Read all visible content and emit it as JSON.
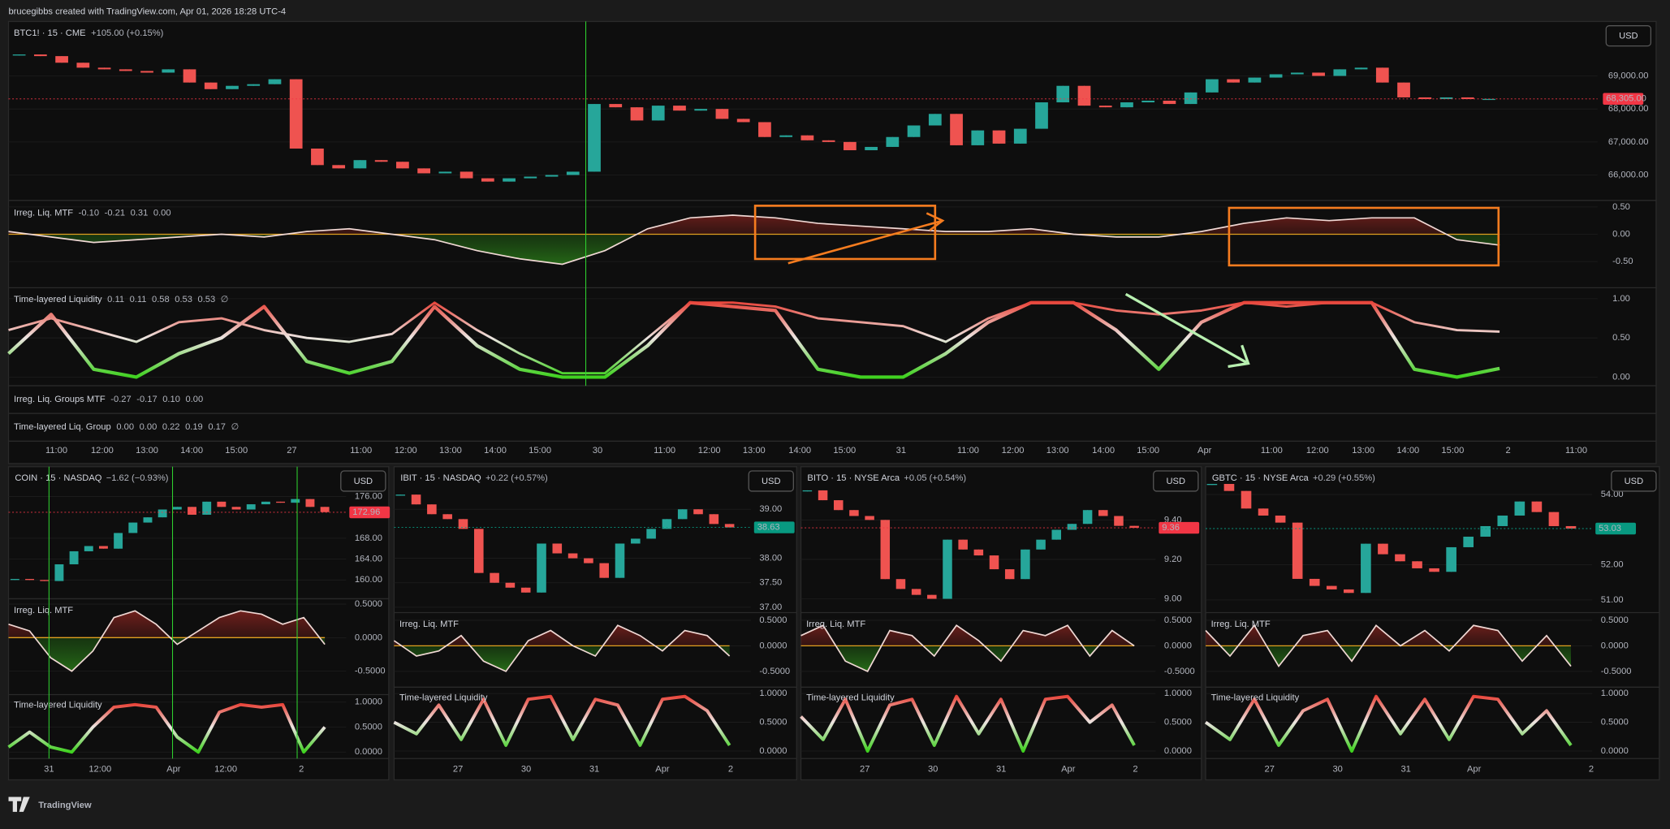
{
  "header": "brucegibbs created with TradingView.com, Apr 01, 2026 18:28 UTC-4",
  "footer": {
    "logo": "TradingView"
  },
  "main": {
    "symbol": "BTC1! · 15 · CME",
    "change": "+105.00 (+0.15%)",
    "currency": "USD",
    "ylim": [
      65230,
      70650
    ],
    "yticks": [
      {
        "value": 69000,
        "label": "69,000.00"
      },
      {
        "value": 68000,
        "label": "68,000.00"
      },
      {
        "value": 67000,
        "label": "67,000.00"
      },
      {
        "value": 66000,
        "label": "66,000.00"
      }
    ],
    "last": {
      "value": 68305,
      "label": "68,305.00"
    },
    "closes": [
      69650,
      69600,
      69400,
      69250,
      69200,
      69150,
      69100,
      69200,
      68800,
      68600,
      68700,
      68750,
      68900,
      66800,
      66300,
      66200,
      66450,
      66400,
      66200,
      66050,
      66100,
      65900,
      65800,
      65900,
      65950,
      66000,
      66100,
      68150,
      68050,
      67650,
      68100,
      67950,
      68000,
      67700,
      67600,
      67150,
      67200,
      67050,
      67000,
      66750,
      66850,
      67150,
      67500,
      67850,
      66900,
      67350,
      66950,
      67400,
      68200,
      68700,
      68100,
      68050,
      68200,
      68250,
      68150,
      68500,
      68900,
      68800,
      68950,
      69050,
      69100,
      69000,
      69200,
      69250,
      68800,
      68350,
      68300,
      68350,
      68300,
      68305
    ],
    "mtf": {
      "title": "Irreg. Liq. MTF",
      "readouts": [
        {
          "text": "-0.10",
          "color": "#8fd18f"
        },
        {
          "text": "-0.21",
          "color": "#6fc46f"
        },
        {
          "text": "0.31",
          "color": "#e06060"
        },
        {
          "text": "0.00",
          "color": "#f5a623"
        }
      ],
      "ylim": [
        -0.98,
        0.62
      ],
      "yticks": [
        {
          "value": 0.5,
          "label": "0.50"
        },
        {
          "value": 0,
          "label": "0.00"
        },
        {
          "value": -0.5,
          "label": "-0.50"
        }
      ],
      "values": [
        0.05,
        -0.05,
        -0.15,
        -0.1,
        -0.05,
        0.0,
        -0.05,
        0.05,
        0.1,
        0.0,
        -0.1,
        -0.3,
        -0.45,
        -0.55,
        -0.3,
        0.1,
        0.3,
        0.35,
        0.3,
        0.2,
        0.15,
        0.1,
        0.05,
        0.05,
        0.1,
        0.0,
        -0.05,
        -0.05,
        0.05,
        0.2,
        0.3,
        0.25,
        0.3,
        0.3,
        -0.1,
        -0.2
      ]
    },
    "tl": {
      "title": "Time-layered Liquidity",
      "readouts": [
        {
          "text": "0.11",
          "color": "#6fd84a"
        },
        {
          "text": "0.11",
          "color": "#9ee08a"
        },
        {
          "text": "0.58",
          "color": "#e0e0e0"
        },
        {
          "text": "0.53",
          "color": "#e0e0e0"
        },
        {
          "text": "0.53",
          "color": "#e0e0e0"
        },
        {
          "text": "∅",
          "color": "#b2b5be"
        }
      ],
      "ylim": [
        -0.11,
        1.14
      ],
      "yticks": [
        {
          "value": 1,
          "label": "1.00"
        },
        {
          "value": 0.5,
          "label": "0.50"
        },
        {
          "value": 0,
          "label": "0.00"
        }
      ],
      "slow": [
        0.6,
        0.75,
        0.6,
        0.45,
        0.7,
        0.75,
        0.6,
        0.5,
        0.45,
        0.55,
        0.95,
        0.6,
        0.3,
        0.05,
        0.05,
        0.5,
        0.95,
        0.95,
        0.9,
        0.75,
        0.7,
        0.65,
        0.45,
        0.75,
        0.95,
        0.95,
        0.85,
        0.8,
        0.85,
        0.95,
        0.9,
        0.95,
        0.95,
        0.7,
        0.6,
        0.58
      ],
      "fast": [
        0.3,
        0.8,
        0.1,
        0.0,
        0.3,
        0.5,
        0.9,
        0.2,
        0.05,
        0.2,
        0.9,
        0.4,
        0.1,
        0.0,
        0.0,
        0.4,
        0.95,
        0.9,
        0.85,
        0.1,
        0.0,
        0.0,
        0.3,
        0.7,
        0.95,
        0.95,
        0.6,
        0.1,
        0.7,
        0.95,
        0.95,
        0.95,
        0.95,
        0.1,
        0.0,
        0.11
      ]
    },
    "groups_mtf": {
      "title": "Irreg. Liq. Groups MTF",
      "readouts": [
        {
          "text": "-0.27",
          "color": "#6fd84a"
        },
        {
          "text": "-0.17",
          "color": "#9ee08a"
        },
        {
          "text": "0.10",
          "color": "#e0e0e0"
        },
        {
          "text": "0.00",
          "color": "#f5a623"
        }
      ]
    },
    "groups_tl": {
      "title": "Time-layered Liq. Group",
      "readouts": [
        {
          "text": "0.00",
          "color": "#6fd84a"
        },
        {
          "text": "0.00",
          "color": "#6fd84a"
        },
        {
          "text": "0.22",
          "color": "#cfe8c8"
        },
        {
          "text": "0.19",
          "color": "#cfe8c8"
        },
        {
          "text": "0.17",
          "color": "#cfe8c8"
        },
        {
          "text": "∅",
          "color": "#b2b5be"
        }
      ]
    },
    "time_labels": [
      "11:00",
      "12:00",
      "13:00",
      "14:00",
      "15:00",
      "27",
      "11:00",
      "12:00",
      "13:00",
      "14:00",
      "15:00",
      "30",
      "11:00",
      "12:00",
      "13:00",
      "14:00",
      "15:00",
      "31",
      "11:00",
      "12:00",
      "13:00",
      "14:00",
      "15:00",
      "Apr",
      "11:00",
      "12:00",
      "13:00",
      "14:00",
      "15:00",
      "2",
      "11:00"
    ]
  },
  "panels": [
    {
      "symbol": "COIN · 15 · NASDAQ",
      "change": "−1.62 (−0.93%)",
      "change_color": "#f23645",
      "currency": "USD",
      "ylim": [
        156.4,
        181.7
      ],
      "yticks": [
        {
          "value": 176,
          "label": "176.00"
        },
        {
          "value": 168,
          "label": "168.00"
        },
        {
          "value": 164,
          "label": "164.00"
        },
        {
          "value": 160,
          "label": "160.00"
        }
      ],
      "last": {
        "value": 172.96,
        "label": "172.96",
        "color": "#f23645"
      },
      "closes": [
        160.2,
        160.0,
        159.8,
        163,
        165.5,
        166.5,
        166,
        169,
        171,
        172,
        173.5,
        174,
        172.5,
        175,
        174,
        173.5,
        174.5,
        175,
        174.8,
        175.5,
        174,
        173
      ],
      "mtf": {
        "title": "Irreg. Liq. MTF",
        "ylim": [
          -0.85,
          0.58
        ],
        "yticks": [
          {
            "value": 0.5,
            "label": "0.5000"
          },
          {
            "value": 0,
            "label": "0.0000"
          },
          {
            "value": -0.5,
            "label": "-0.5000"
          }
        ],
        "values": [
          0.2,
          0.1,
          -0.3,
          -0.5,
          -0.2,
          0.3,
          0.4,
          0.2,
          -0.1,
          0.1,
          0.3,
          0.4,
          0.35,
          0.2,
          0.3,
          -0.1
        ]
      },
      "tl": {
        "title": "Time-layered Liquidity",
        "ylim": [
          -0.13,
          1.15
        ],
        "yticks": [
          {
            "value": 1,
            "label": "1.0000"
          },
          {
            "value": 0.5,
            "label": "0.5000"
          },
          {
            "value": 0,
            "label": "0.0000"
          }
        ],
        "values": [
          0.1,
          0.4,
          0.1,
          0.0,
          0.5,
          0.9,
          0.95,
          0.9,
          0.3,
          0.0,
          0.8,
          0.95,
          0.9,
          0.95,
          0.0,
          0.5
        ]
      },
      "time_labels": [
        "31",
        "12:00",
        "Apr",
        "12:00",
        "2"
      ]
    },
    {
      "symbol": "IBIT · 15 · NASDAQ",
      "change": "+0.22 (+0.57%)",
      "change_color": "#26a69a",
      "currency": "USD",
      "ylim": [
        36.89,
        39.87
      ],
      "yticks": [
        {
          "value": 39,
          "label": "39.00"
        },
        {
          "value": 38,
          "label": "38.00"
        },
        {
          "value": 37.5,
          "label": "37.50"
        },
        {
          "value": 37,
          "label": "37.00"
        }
      ],
      "last": {
        "value": 38.63,
        "label": "38.63",
        "color": "#089981"
      },
      "closes": [
        39.3,
        39.1,
        38.9,
        38.8,
        38.6,
        37.7,
        37.5,
        37.4,
        37.3,
        38.3,
        38.1,
        38.0,
        37.9,
        37.6,
        38.3,
        38.4,
        38.6,
        38.8,
        39.0,
        38.9,
        38.7,
        38.63
      ],
      "mtf": {
        "title": "Irreg. Liq. MTF",
        "ylim": [
          -0.81,
          0.65
        ],
        "yticks": [
          {
            "value": 0.5,
            "label": "0.5000"
          },
          {
            "value": 0,
            "label": "0.0000"
          },
          {
            "value": -0.5,
            "label": "-0.5000"
          }
        ],
        "values": [
          0.1,
          -0.2,
          -0.1,
          0.2,
          -0.3,
          -0.5,
          0.1,
          0.3,
          0.0,
          -0.2,
          0.4,
          0.2,
          -0.1,
          0.3,
          0.2,
          -0.2
        ]
      },
      "tl": {
        "title": "Time-layered Liquidity",
        "ylim": [
          -0.13,
          1.11
        ],
        "yticks": [
          {
            "value": 1,
            "label": "1.0000"
          },
          {
            "value": 0.5,
            "label": "0.5000"
          },
          {
            "value": 0,
            "label": "0.0000"
          }
        ],
        "values": [
          0.5,
          0.3,
          0.8,
          0.2,
          0.9,
          0.1,
          0.9,
          0.95,
          0.2,
          0.9,
          0.8,
          0.1,
          0.9,
          0.95,
          0.7,
          0.1
        ]
      },
      "time_labels": [
        "27",
        "30",
        "31",
        "Apr",
        "2"
      ]
    },
    {
      "symbol": "BITO · 15 · NYSE Arca",
      "change": "+0.05 (+0.54%)",
      "change_color": "#26a69a",
      "currency": "USD",
      "ylim": [
        8.93,
        9.67
      ],
      "yticks": [
        {
          "value": 9.4,
          "label": "9.40"
        },
        {
          "value": 9.2,
          "label": "9.20"
        },
        {
          "value": 9,
          "label": "9.00"
        }
      ],
      "last": {
        "value": 9.36,
        "label": "9.36",
        "color": "#f23645"
      },
      "closes": [
        9.55,
        9.5,
        9.45,
        9.42,
        9.4,
        9.1,
        9.05,
        9.02,
        9.0,
        9.3,
        9.25,
        9.22,
        9.15,
        9.1,
        9.25,
        9.3,
        9.35,
        9.38,
        9.45,
        9.42,
        9.37,
        9.36
      ],
      "mtf": {
        "title": "Irreg. Liq. MTF",
        "ylim": [
          -0.81,
          0.65
        ],
        "yticks": [
          {
            "value": 0.5,
            "label": "0.5000"
          },
          {
            "value": 0,
            "label": "0.0000"
          },
          {
            "value": -0.5,
            "label": "-0.5000"
          }
        ],
        "values": [
          0.2,
          0.4,
          -0.3,
          -0.5,
          0.3,
          0.2,
          -0.2,
          0.4,
          0.1,
          -0.3,
          0.3,
          0.2,
          0.4,
          -0.2,
          0.3,
          0.0
        ]
      },
      "tl": {
        "title": "Time-layered Liquidity",
        "ylim": [
          -0.13,
          1.11
        ],
        "yticks": [
          {
            "value": 1,
            "label": "1.0000"
          },
          {
            "value": 0.5,
            "label": "0.5000"
          },
          {
            "value": 0,
            "label": "0.0000"
          }
        ],
        "values": [
          0.6,
          0.2,
          0.9,
          0.0,
          0.8,
          0.9,
          0.1,
          0.95,
          0.3,
          0.9,
          0.0,
          0.9,
          0.95,
          0.5,
          0.8,
          0.1
        ]
      },
      "time_labels": [
        "27",
        "30",
        "31",
        "Apr",
        "2"
      ]
    },
    {
      "symbol": "GBTC · 15 · NYSE Arca",
      "change": "+0.29 (+0.55%)",
      "change_color": "#26a69a",
      "currency": "USD",
      "ylim": [
        50.64,
        54.79
      ],
      "yticks": [
        {
          "value": 54,
          "label": "54.00"
        },
        {
          "value": 52,
          "label": "52.00"
        },
        {
          "value": 51,
          "label": "51.00"
        }
      ],
      "last": {
        "value": 53.03,
        "label": "53.03",
        "color": "#089981"
      },
      "closes": [
        54.3,
        54.1,
        53.6,
        53.4,
        53.2,
        51.6,
        51.4,
        51.3,
        51.2,
        52.6,
        52.3,
        52.1,
        51.9,
        51.8,
        52.5,
        52.8,
        53.1,
        53.4,
        53.8,
        53.5,
        53.1,
        53.03
      ],
      "mtf": {
        "title": "Irreg. Liq. MTF",
        "ylim": [
          -0.81,
          0.65
        ],
        "yticks": [
          {
            "value": 0.5,
            "label": "0.5000"
          },
          {
            "value": 0,
            "label": "0.0000"
          },
          {
            "value": -0.5,
            "label": "-0.5000"
          }
        ],
        "values": [
          0.3,
          -0.2,
          0.4,
          -0.4,
          0.2,
          0.3,
          -0.3,
          0.4,
          0.0,
          0.3,
          -0.1,
          0.4,
          0.3,
          -0.3,
          0.2,
          -0.4
        ]
      },
      "tl": {
        "title": "Time-layered Liquidity",
        "ylim": [
          -0.13,
          1.11
        ],
        "yticks": [
          {
            "value": 1,
            "label": "1.0000"
          },
          {
            "value": 0.5,
            "label": "0.5000"
          },
          {
            "value": 0,
            "label": "0.0000"
          }
        ],
        "values": [
          0.5,
          0.2,
          0.9,
          0.1,
          0.7,
          0.9,
          0.0,
          0.95,
          0.3,
          0.9,
          0.2,
          0.95,
          0.9,
          0.3,
          0.7,
          0.1
        ]
      },
      "time_labels": [
        "27",
        "30",
        "31",
        "Apr",
        "2"
      ]
    }
  ]
}
